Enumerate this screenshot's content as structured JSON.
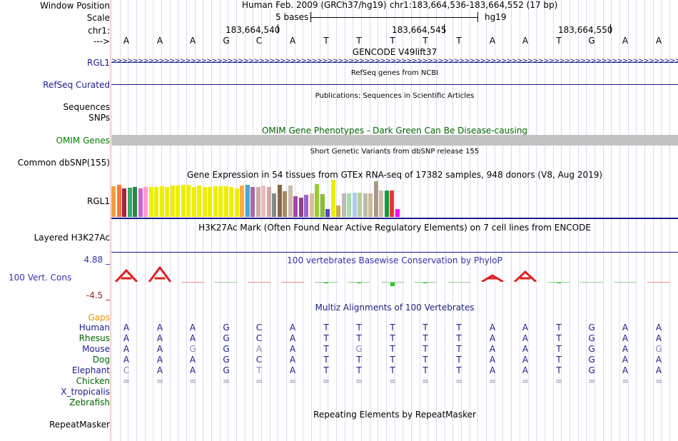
{
  "header": {
    "window_position_label": "Window Position",
    "assembly": "Human Feb. 2009 (GRCh37/hg19)",
    "position": "chr1:183,664,536-183,664,552 (17 bp)",
    "scale_label": "Scale",
    "scale_text": "5 bases",
    "scale_db": "hg19",
    "chrom_label": "chr1:",
    "coords": [
      "183,664,540",
      "183,664,545",
      "183,664,550"
    ],
    "strand_label": "--->"
  },
  "bases": [
    "A",
    "A",
    "A",
    "G",
    "C",
    "A",
    "T",
    "T",
    "T",
    "T",
    "T",
    "A",
    "A",
    "T",
    "G",
    "A",
    "A"
  ],
  "tracks": {
    "gencode": {
      "title": "GENCODE V49lift37",
      "label": "RGL1"
    },
    "refseq": {
      "title": "RefSeq genes from NCBI",
      "label": "RefSeq Curated"
    },
    "publications": {
      "title": "Publications: Sequences in Scientific Articles",
      "label1": "Sequences",
      "label2": "SNPs"
    },
    "omim": {
      "title": "OMIM Gene Phenotypes - Dark Green Can Be Disease-causing",
      "label": "OMIM Genes",
      "label_color": "#008000",
      "title_color": "#006400"
    },
    "dbsnp": {
      "title": "Short Genetic Variants from dbSNP release 155",
      "label": "Common dbSNP(155)"
    },
    "gtex": {
      "title": "Gene Expression in 54 tissues from GTEx RNA-seq of 17382 samples, 948 donors (V8, Aug 2019)",
      "label": "RGL1"
    },
    "h3k27ac": {
      "title": "H3K27Ac Mark (Often Found Near Active Regulatory Elements) on 7 cell lines from ENCODE",
      "label": "Layered H3K27Ac"
    },
    "phylop": {
      "title": "100 vertebrates Basewise Conservation by PhyloP",
      "label": "100 Vert. Cons",
      "max": "4.88 _",
      "min": "-4.5 _",
      "color": "#3333aa"
    },
    "multiz": {
      "title": "Multiz Alignments of 100 Vertebrates",
      "gaps_label": "Gaps",
      "title_color": "#1a237e"
    },
    "repeatmasker": {
      "title": "Repeating Elements by RepeatMasker",
      "label": "RepeatMasker"
    }
  },
  "species": [
    {
      "name": "Human",
      "seq": [
        "A",
        "A",
        "A",
        "G",
        "C",
        "A",
        "T",
        "T",
        "T",
        "T",
        "T",
        "A",
        "A",
        "T",
        "G",
        "A",
        "A"
      ],
      "light": []
    },
    {
      "name": "Rhesus",
      "seq": [
        "A",
        "A",
        "A",
        "G",
        "C",
        "A",
        "T",
        "T",
        "T",
        "T",
        "T",
        "A",
        "A",
        "T",
        "G",
        "A",
        "A"
      ],
      "light": []
    },
    {
      "name": "Mouse",
      "seq": [
        "A",
        "A",
        "G",
        "G",
        "A",
        "A",
        "T",
        "G",
        "T",
        "T",
        "T",
        "A",
        "A",
        "T",
        "G",
        "A",
        "G"
      ],
      "light": [
        2,
        4,
        7,
        16
      ]
    },
    {
      "name": "Dog",
      "seq": [
        "A",
        "A",
        "A",
        "G",
        "C",
        "A",
        "T",
        "T",
        "T",
        "T",
        "T",
        "A",
        "A",
        "T",
        "G",
        "A",
        "A"
      ],
      "light": []
    },
    {
      "name": "Elephant",
      "seq": [
        "C",
        "A",
        "A",
        "G",
        "T",
        "A",
        "T",
        "T",
        "T",
        "T",
        "T",
        "A",
        "A",
        "T",
        "G",
        "A",
        "A"
      ],
      "light": [
        0,
        4
      ]
    },
    {
      "name": "Chicken",
      "seq": [
        "=",
        "=",
        "=",
        "=",
        "=",
        "=",
        "=",
        "=",
        "=",
        "=",
        "=",
        "=",
        "=",
        "=",
        "=",
        "=",
        "="
      ],
      "light": []
    },
    {
      "name": "X_tropicalis",
      "seq": [],
      "light": []
    },
    {
      "name": "Zebrafish",
      "seq": [],
      "light": []
    }
  ],
  "gtex_bars": [
    {
      "h": 0.82,
      "c": "#f0a040"
    },
    {
      "h": 0.86,
      "c": "#ff7733"
    },
    {
      "h": 0.76,
      "c": "#aa2244"
    },
    {
      "h": 0.78,
      "c": "#33aa66"
    },
    {
      "h": 0.8,
      "c": "#228844"
    },
    {
      "h": 0.76,
      "c": "#cc66cc"
    },
    {
      "h": 0.8,
      "c": "#ff99cc"
    },
    {
      "h": 0.8,
      "c": "#eeee00"
    },
    {
      "h": 0.8,
      "c": "#eeee00"
    },
    {
      "h": 0.82,
      "c": "#eeee00"
    },
    {
      "h": 0.8,
      "c": "#eeee00"
    },
    {
      "h": 0.84,
      "c": "#eeee00"
    },
    {
      "h": 0.84,
      "c": "#eeee00"
    },
    {
      "h": 0.86,
      "c": "#eeee00"
    },
    {
      "h": 0.86,
      "c": "#eeee00"
    },
    {
      "h": 0.8,
      "c": "#eeee00"
    },
    {
      "h": 0.84,
      "c": "#eeee00"
    },
    {
      "h": 0.8,
      "c": "#eeee00"
    },
    {
      "h": 0.8,
      "c": "#eeee00"
    },
    {
      "h": 0.82,
      "c": "#eeee00"
    },
    {
      "h": 0.82,
      "c": "#eeee00"
    },
    {
      "h": 0.82,
      "c": "#eeee00"
    },
    {
      "h": 0.8,
      "c": "#eeee00"
    },
    {
      "h": 0.76,
      "c": "#eeee00"
    },
    {
      "h": 0.84,
      "c": "#ffaa44"
    },
    {
      "h": 0.86,
      "c": "#44aacc"
    },
    {
      "h": 0.8,
      "c": "#aa66aa"
    },
    {
      "h": 0.8,
      "c": "#ccaaaa"
    },
    {
      "h": 0.84,
      "c": "#eebbbb"
    },
    {
      "h": 0.8,
      "c": "#ccaaaa"
    },
    {
      "h": 0.64,
      "c": "#888888"
    },
    {
      "h": 0.86,
      "c": "#886644"
    },
    {
      "h": 0.7,
      "c": "#aa8866"
    },
    {
      "h": 0.84,
      "c": "#ccbbaa"
    },
    {
      "h": 0.56,
      "c": "#aa44aa"
    },
    {
      "h": 0.52,
      "c": "#884488"
    },
    {
      "h": 0.6,
      "c": "#9966cc"
    },
    {
      "h": 0.64,
      "c": "#ddbb99"
    },
    {
      "h": 0.88,
      "c": "#99cc33"
    },
    {
      "h": 0.62,
      "c": "#88bb33"
    },
    {
      "h": 0.22,
      "c": "#5544cc"
    },
    {
      "h": 1.0,
      "c": "#eeee00"
    },
    {
      "h": 0.3,
      "c": "#ccaa44"
    },
    {
      "h": 0.64,
      "c": "#bbbbbb"
    },
    {
      "h": 0.64,
      "c": "#aaddaa"
    },
    {
      "h": 0.66,
      "c": "#aaccee"
    },
    {
      "h": 0.66,
      "c": "#bbcc99"
    },
    {
      "h": 0.64,
      "c": "#bbbbaa"
    },
    {
      "h": 0.64,
      "c": "#ccbb99"
    },
    {
      "h": 0.96,
      "c": "#aa9988"
    },
    {
      "h": 0.72,
      "c": "#ccbbaa"
    },
    {
      "h": 0.72,
      "c": "#119944"
    },
    {
      "h": 0.72,
      "c": "#ee3333"
    },
    {
      "h": 0.22,
      "c": "#ff00ff"
    }
  ],
  "phylop_values": [
    1.8,
    2.2,
    -0.2,
    0.0,
    -0.1,
    -0.15,
    0.15,
    0.2,
    0.5,
    0.2,
    0.0,
    1.0,
    1.6,
    0.1,
    0.0,
    0.0,
    -0.2
  ],
  "colors": {
    "label_blue": "#1a1a8c",
    "track_green": "#006400",
    "species_blue": "#1a1a8c",
    "species_green": "#006400"
  }
}
